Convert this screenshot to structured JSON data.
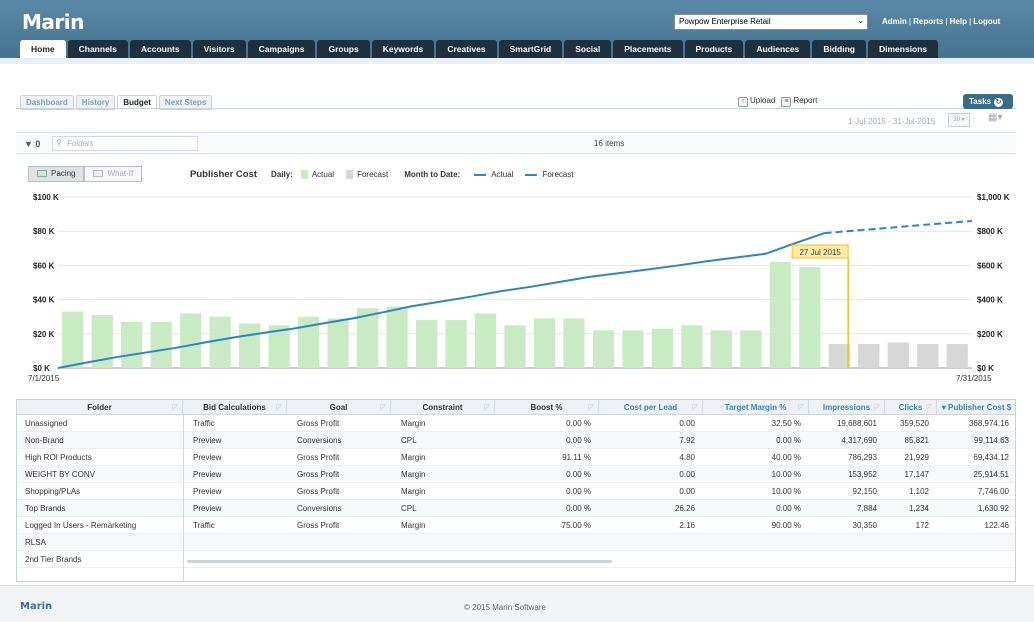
{
  "header": {
    "logo": "Marin",
    "client": "Powpow Enterprise Retail",
    "links": [
      "Admin",
      "Reports",
      "Help",
      "Logout"
    ]
  },
  "nav": {
    "tabs": [
      "Home",
      "Channels",
      "Accounts",
      "Visitors",
      "Campaigns",
      "Groups",
      "Keywords",
      "Creatives",
      "SmartGrid",
      "Social",
      "Placements",
      "Products",
      "Audiences",
      "Bidding",
      "Dimensions"
    ],
    "active": "Home"
  },
  "subtabs": {
    "items": [
      "Dashboard",
      "History",
      "Budget",
      "Next Steps"
    ],
    "active": "Budget"
  },
  "toolbar": {
    "upload": "Upload",
    "report": "Report",
    "tasks": "Tasks",
    "date_range": "1-Jul-2015 - 31-Jul-2015",
    "calendar_day": "30"
  },
  "filter": {
    "count": "0",
    "folders_placeholder": "Folders",
    "items": "16 items"
  },
  "chart_controls": {
    "pacing": "Pacing",
    "what_if": "What-If",
    "title": "Publisher Cost",
    "daily_label": "Daily:",
    "actual": "Actual",
    "forecast": "Forecast",
    "mtd_label": "Month to Date:",
    "mtd_actual": "Actual",
    "mtd_forecast": "Forecast"
  },
  "chart_data": {
    "type": "bar",
    "title": "Publisher Cost",
    "x_start_label": "7/1/2015",
    "x_end_label": "7/31/2015",
    "left_axis": {
      "ticks": [
        "$0 K",
        "$20 K",
        "$40 K",
        "$60 K",
        "$80 K",
        "$100 K"
      ],
      "ylim": [
        0,
        100
      ]
    },
    "right_axis": {
      "ticks": [
        "$0 K",
        "$200 K",
        "$400 K",
        "$600 K",
        "$800 K",
        "$1,000 K"
      ],
      "ylim": [
        0,
        1000
      ]
    },
    "marker_label": "27 Jul 2015",
    "marker_day": 27,
    "colors": {
      "actual_bar": "#c8ebc4",
      "forecast_bar": "#d7d7d7",
      "line": "#2e86c1",
      "marker": "#f0c419"
    },
    "daily_actual": [
      33,
      31,
      27,
      27,
      32,
      30,
      26,
      25,
      30,
      29,
      35,
      36,
      28,
      28,
      32,
      25,
      29,
      29,
      22,
      22,
      23,
      25,
      22,
      22,
      62,
      59
    ],
    "daily_forecast": [
      14,
      14,
      15,
      14,
      14
    ],
    "mtd_actual": [
      33,
      64,
      91,
      118,
      150,
      180,
      206,
      231,
      261,
      290,
      325,
      361,
      389,
      417,
      449,
      474,
      503,
      532,
      554,
      576,
      599,
      624,
      646,
      668,
      730,
      789
    ],
    "mtd_forecast": [
      803,
      817,
      832,
      846,
      860
    ]
  },
  "table": {
    "columns": [
      {
        "label": "Folder",
        "align": "c"
      },
      {
        "label": "Bid Calculations",
        "align": "c"
      },
      {
        "label": "Goal",
        "align": "c"
      },
      {
        "label": "Constraint",
        "align": "c"
      },
      {
        "label": "Boost %",
        "align": "c"
      },
      {
        "label": "Cost per Lead",
        "align": "c",
        "link": true
      },
      {
        "label": "Target Margin %",
        "align": "c",
        "link": true
      },
      {
        "label": "Impressions",
        "align": "c",
        "link": true
      },
      {
        "label": "Clicks",
        "align": "c",
        "link": true
      },
      {
        "label": "Publisher Cost $",
        "align": "c",
        "link": true,
        "sorted": true
      }
    ],
    "rows": [
      [
        "Unassigned",
        "Traffic",
        "Gross Profit",
        "Margin",
        "0.00 %",
        "0.00",
        "32.50 %",
        "19,688,601",
        "359,520",
        "368,974.16"
      ],
      [
        "Non-Brand",
        "Preview",
        "Conversions",
        "CPL",
        "0.00 %",
        "7.92",
        "0.00 %",
        "4,317,690",
        "85,821",
        "99,114.63"
      ],
      [
        "High ROI Products",
        "Preview",
        "Gross Profit",
        "Margin",
        "91.11 %",
        "4.80",
        "40.00 %",
        "786,293",
        "21,929",
        "69,434.12"
      ],
      [
        "WEIGHT BY CONV",
        "Preview",
        "Gross Profit",
        "Margin",
        "0.00 %",
        "0.00",
        "10.00 %",
        "153,952",
        "17,147",
        "25,914.51"
      ],
      [
        "Shopping/PLAs",
        "Preview",
        "Gross Profit",
        "Margin",
        "0.00 %",
        "0.00",
        "10.00 %",
        "92,150",
        "1,102",
        "7,746.00"
      ],
      [
        "Top Brands",
        "Preview",
        "Conversions",
        "CPL",
        "0.00 %",
        "26.26",
        "0.00 %",
        "7,884",
        "1,234",
        "1,630.92"
      ],
      [
        "Logged In Users - Remarketing",
        "Traffic",
        "Gross Profit",
        "Margin",
        "75.00 %",
        "2.16",
        "90.00 %",
        "30,350",
        "172",
        "122.46"
      ],
      [
        "RLSA",
        "",
        "",
        "",
        "",
        "",
        "",
        "",
        "",
        ""
      ],
      [
        "2nd Tier Brands",
        "",
        "",
        "",
        "",
        "",
        "",
        "",
        "",
        ""
      ]
    ]
  },
  "footer": {
    "logo": "Marin",
    "copyright": "© 2015 Marin Software"
  }
}
